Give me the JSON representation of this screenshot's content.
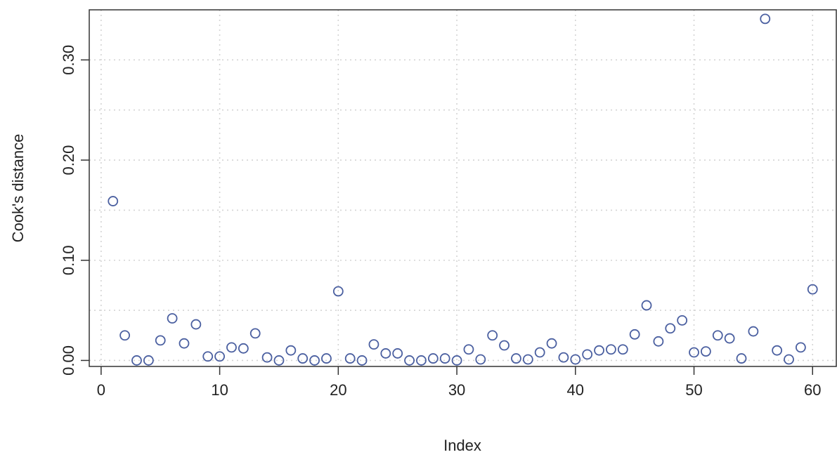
{
  "chart_data": {
    "type": "scatter",
    "title": "",
    "xlabel": "Index",
    "ylabel": "Cook's distance",
    "xlim": [
      -1,
      62
    ],
    "ylim": [
      -0.006,
      0.35
    ],
    "x_ticks": [
      0,
      10,
      20,
      30,
      40,
      50,
      60
    ],
    "x_tick_labels": [
      "0",
      "10",
      "20",
      "30",
      "40",
      "50",
      "60"
    ],
    "y_ticks": [
      0.0,
      0.1,
      0.2,
      0.3
    ],
    "y_tick_labels": [
      "0.00",
      "0.10",
      "0.20",
      "0.30"
    ],
    "x_grid": [
      0,
      10,
      20,
      30,
      40,
      50,
      60
    ],
    "y_grid": [
      0.0,
      0.05,
      0.1,
      0.15,
      0.2,
      0.25,
      0.3
    ],
    "grid": true,
    "point_color": "#4a5fa0",
    "series": [
      {
        "x": [
          1,
          2,
          3,
          4,
          5,
          6,
          7,
          8,
          9,
          10,
          11,
          12,
          13,
          14,
          15,
          16,
          17,
          18,
          19,
          20,
          21,
          22,
          23,
          24,
          25,
          26,
          27,
          28,
          29,
          30,
          31,
          32,
          33,
          34,
          35,
          36,
          37,
          38,
          39,
          40,
          41,
          42,
          43,
          44,
          45,
          46,
          47,
          48,
          49,
          50,
          51,
          52,
          53,
          54,
          55,
          56,
          57,
          58,
          59,
          60
        ],
        "values": [
          0.159,
          0.025,
          0.0,
          0.0,
          0.02,
          0.042,
          0.017,
          0.036,
          0.004,
          0.004,
          0.013,
          0.012,
          0.027,
          0.003,
          0.0,
          0.01,
          0.002,
          0.0,
          0.002,
          0.069,
          0.002,
          0.0,
          0.016,
          0.007,
          0.007,
          0.0,
          0.0,
          0.002,
          0.002,
          0.0,
          0.011,
          0.001,
          0.025,
          0.015,
          0.002,
          0.001,
          0.008,
          0.017,
          0.003,
          0.001,
          0.006,
          0.01,
          0.011,
          0.011,
          0.026,
          0.055,
          0.019,
          0.032,
          0.04,
          0.008,
          0.009,
          0.025,
          0.022,
          0.002,
          0.029,
          0.341,
          0.01,
          0.001,
          0.013,
          0.071
        ]
      }
    ]
  }
}
